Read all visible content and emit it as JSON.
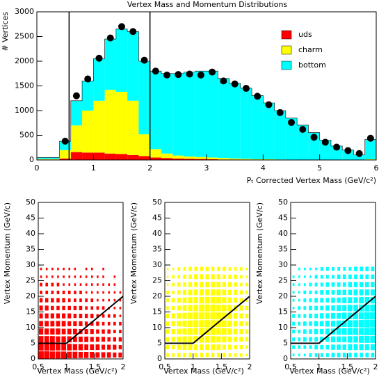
{
  "chart_data": [
    {
      "type": "stacked_histogram",
      "title": "Vertex Mass and Momentum Distributions",
      "xlabel": "Pₜ Corrected Vertex Mass (GeV/c²)",
      "ylabel": "# Vertices",
      "bins": [
        0,
        0.2,
        0.4,
        0.6,
        0.8,
        1,
        1.2,
        1.4,
        1.6,
        1.8,
        2,
        2.2,
        2.4,
        2.6,
        2.8,
        3,
        3.2,
        3.4,
        3.6,
        3.8,
        4,
        4.2,
        4.4,
        4.6,
        4.8,
        5,
        5.2,
        5.4,
        5.6,
        5.8,
        6
      ],
      "series": [
        {
          "name": "uds",
          "color": "#ff0000",
          "values": [
            10,
            10,
            30,
            160,
            150,
            150,
            130,
            120,
            100,
            80,
            50,
            40,
            30,
            25,
            20,
            15,
            10,
            10,
            8,
            5,
            5,
            3,
            3,
            2,
            2,
            1,
            1,
            1,
            1,
            5
          ]
        },
        {
          "name": "charm",
          "color": "#ffff00",
          "values": [
            10,
            10,
            170,
            540,
            850,
            1050,
            1290,
            1260,
            1100,
            440,
            170,
            90,
            60,
            45,
            40,
            35,
            30,
            20,
            15,
            10,
            10,
            7,
            5,
            3,
            3,
            2,
            1,
            1,
            1,
            10
          ]
        },
        {
          "name": "bottom",
          "color": "#00ffff",
          "values": [
            30,
            30,
            180,
            500,
            600,
            850,
            1030,
            1270,
            1400,
            1480,
            1580,
            1620,
            1660,
            1710,
            1740,
            1750,
            1610,
            1520,
            1430,
            1290,
            1140,
            990,
            840,
            700,
            550,
            400,
            280,
            200,
            100,
            400
          ]
        }
      ],
      "points": {
        "x": [
          0.5,
          0.7,
          0.9,
          1.1,
          1.3,
          1.5,
          1.7,
          1.9,
          2.1,
          2.3,
          2.5,
          2.7,
          2.9,
          3.1,
          3.3,
          3.5,
          3.7,
          3.9,
          4.1,
          4.3,
          4.5,
          4.7,
          4.9,
          5.1,
          5.3,
          5.5,
          5.7,
          5.9
        ],
        "values": [
          380,
          1300,
          1640,
          2060,
          2470,
          2700,
          2600,
          2020,
          1800,
          1720,
          1730,
          1740,
          1720,
          1780,
          1600,
          1540,
          1450,
          1290,
          1120,
          960,
          760,
          620,
          460,
          360,
          260,
          190,
          130,
          440
        ]
      },
      "vlines": [
        0.57,
        2
      ],
      "xlim": [
        0,
        6
      ],
      "ylim": [
        0,
        3000
      ],
      "xticks": [
        0,
        1,
        2,
        3,
        4,
        5,
        6
      ],
      "yticks": [
        0,
        500,
        1000,
        1500,
        2000,
        2500,
        3000
      ],
      "legend": "upper right"
    },
    {
      "type": "box2d",
      "color": "#ff0000",
      "xlabel": "Vertex Mass (GeV/c²)",
      "ylabel": "Vertex Momentum (GeV/c)",
      "xlim": [
        0.5,
        2
      ],
      "ylim": [
        0,
        50
      ],
      "xticks": [
        0.5,
        1,
        1.5,
        2
      ],
      "yticks": [
        0,
        5,
        10,
        15,
        20,
        25,
        30,
        35,
        40,
        45,
        50
      ],
      "xbins": [
        0.5,
        0.6,
        0.7,
        0.8,
        0.9,
        1,
        1.1,
        1.2,
        1.3,
        1.4,
        1.5,
        1.6,
        1.7,
        1.8,
        1.9,
        2
      ],
      "ybins": [
        0,
        2.5,
        5,
        7.5,
        10,
        12.5,
        15,
        17.5,
        20,
        22.5,
        25,
        27.5,
        30
      ],
      "z": [
        [
          9,
          9,
          8,
          8,
          8,
          7,
          7,
          6,
          6,
          6,
          5,
          5,
          5,
          4,
          4
        ],
        [
          8,
          8,
          8,
          7,
          7,
          7,
          6,
          6,
          5,
          5,
          5,
          4,
          4,
          4,
          3
        ],
        [
          7,
          7,
          7,
          6,
          6,
          6,
          5,
          5,
          5,
          4,
          4,
          4,
          3,
          3,
          3
        ],
        [
          6,
          6,
          6,
          6,
          5,
          5,
          5,
          4,
          4,
          4,
          3,
          3,
          3,
          2,
          2
        ],
        [
          5,
          5,
          5,
          5,
          5,
          4,
          4,
          4,
          3,
          3,
          3,
          2,
          2,
          2,
          2
        ],
        [
          4,
          4,
          4,
          4,
          4,
          4,
          3,
          3,
          3,
          3,
          2,
          2,
          2,
          2,
          1
        ],
        [
          4,
          4,
          3,
          3,
          3,
          3,
          3,
          3,
          2,
          2,
          2,
          2,
          1,
          1,
          1
        ],
        [
          3,
          3,
          3,
          3,
          3,
          2,
          2,
          2,
          2,
          2,
          1,
          1,
          1,
          1,
          1
        ],
        [
          2,
          2,
          2,
          2,
          2,
          2,
          2,
          2,
          1,
          1,
          1,
          1,
          1,
          1,
          1
        ],
        [
          2,
          2,
          2,
          2,
          1,
          1,
          1,
          1,
          1,
          1,
          1,
          1,
          1,
          1,
          0
        ],
        [
          1,
          1,
          1,
          1,
          1,
          1,
          1,
          1,
          1,
          1,
          1,
          1,
          0,
          1,
          0
        ],
        [
          1,
          1,
          1,
          1,
          1,
          1,
          1,
          0,
          1,
          1,
          0,
          1,
          0,
          0,
          0
        ]
      ],
      "cut": {
        "x": [
          0.5,
          1,
          2
        ],
        "y": [
          5,
          5,
          20
        ]
      }
    },
    {
      "type": "box2d",
      "color": "#ffff00",
      "xlabel": "Vertex Mass (GeV/c²)",
      "ylabel": "Vertex Momentum (GeV/c)",
      "xlim": [
        0.5,
        2
      ],
      "ylim": [
        0,
        50
      ],
      "xticks": [
        0.5,
        1,
        1.5,
        2
      ],
      "yticks": [
        0,
        5,
        10,
        15,
        20,
        25,
        30,
        35,
        40,
        45,
        50
      ],
      "xbins": [
        0.5,
        0.6,
        0.7,
        0.8,
        0.9,
        1,
        1.1,
        1.2,
        1.3,
        1.4,
        1.5,
        1.6,
        1.7,
        1.8,
        1.9,
        2
      ],
      "ybins": [
        0,
        2.5,
        5,
        7.5,
        10,
        12.5,
        15,
        17.5,
        20,
        22.5,
        25,
        27.5,
        30
      ],
      "z": [
        [
          2,
          2,
          3,
          3,
          3,
          3,
          3,
          3,
          3,
          3,
          3,
          2,
          2,
          2,
          1
        ],
        [
          3,
          3,
          4,
          5,
          5,
          5,
          5,
          5,
          5,
          5,
          4,
          4,
          3,
          3,
          2
        ],
        [
          3,
          4,
          5,
          6,
          6,
          7,
          7,
          7,
          7,
          6,
          6,
          5,
          4,
          4,
          3
        ],
        [
          3,
          4,
          5,
          6,
          7,
          7,
          8,
          8,
          8,
          7,
          7,
          6,
          5,
          4,
          3
        ],
        [
          3,
          4,
          5,
          6,
          7,
          8,
          8,
          9,
          8,
          8,
          7,
          6,
          5,
          4,
          3
        ],
        [
          3,
          4,
          5,
          6,
          7,
          8,
          8,
          8,
          8,
          8,
          7,
          6,
          5,
          4,
          3
        ],
        [
          2,
          3,
          4,
          5,
          6,
          7,
          8,
          8,
          8,
          7,
          7,
          6,
          5,
          4,
          3
        ],
        [
          2,
          3,
          4,
          5,
          6,
          6,
          7,
          7,
          7,
          7,
          6,
          5,
          4,
          3,
          2
        ],
        [
          2,
          2,
          3,
          4,
          5,
          5,
          6,
          6,
          6,
          6,
          5,
          4,
          4,
          3,
          2
        ],
        [
          1,
          2,
          3,
          3,
          4,
          4,
          5,
          5,
          5,
          5,
          4,
          4,
          3,
          2,
          2
        ],
        [
          1,
          2,
          2,
          3,
          3,
          4,
          4,
          4,
          4,
          4,
          3,
          3,
          3,
          2,
          1
        ],
        [
          1,
          1,
          2,
          2,
          3,
          3,
          3,
          3,
          3,
          3,
          3,
          2,
          2,
          2,
          1
        ]
      ],
      "cut": {
        "x": [
          0.5,
          1,
          2
        ],
        "y": [
          5,
          5,
          20
        ]
      }
    },
    {
      "type": "box2d",
      "color": "#00ffff",
      "xlabel": "Vertex Mass (GeV/c²)",
      "ylabel": "Vertex Momentum (GeV/c)",
      "xlim": [
        0.5,
        2
      ],
      "ylim": [
        0,
        50
      ],
      "xticks": [
        0.5,
        1,
        1.5,
        2
      ],
      "yticks": [
        0,
        5,
        10,
        15,
        20,
        25,
        30,
        35,
        40,
        45,
        50
      ],
      "xbins": [
        0.5,
        0.6,
        0.7,
        0.8,
        0.9,
        1,
        1.1,
        1.2,
        1.3,
        1.4,
        1.5,
        1.6,
        1.7,
        1.8,
        1.9,
        2
      ],
      "ybins": [
        0,
        2.5,
        5,
        7.5,
        10,
        12.5,
        15,
        17.5,
        20,
        22.5,
        25,
        27.5,
        30
      ],
      "z": [
        [
          1,
          1,
          1,
          2,
          2,
          2,
          2,
          3,
          3,
          3,
          3,
          3,
          3,
          3,
          3
        ],
        [
          2,
          2,
          2,
          2,
          3,
          3,
          3,
          4,
          4,
          4,
          5,
          5,
          5,
          5,
          5
        ],
        [
          2,
          2,
          3,
          3,
          3,
          4,
          4,
          5,
          5,
          5,
          6,
          6,
          7,
          7,
          7
        ],
        [
          2,
          2,
          3,
          3,
          4,
          4,
          5,
          5,
          6,
          6,
          7,
          7,
          7,
          8,
          8
        ],
        [
          2,
          2,
          3,
          3,
          4,
          4,
          5,
          5,
          6,
          6,
          7,
          7,
          8,
          8,
          8
        ],
        [
          2,
          2,
          2,
          3,
          3,
          4,
          4,
          5,
          5,
          6,
          6,
          7,
          7,
          8,
          8
        ],
        [
          1,
          2,
          2,
          3,
          3,
          3,
          4,
          4,
          5,
          5,
          6,
          6,
          7,
          7,
          7
        ],
        [
          1,
          1,
          2,
          2,
          3,
          3,
          3,
          4,
          4,
          5,
          5,
          5,
          6,
          6,
          6
        ],
        [
          1,
          1,
          2,
          2,
          2,
          3,
          3,
          3,
          4,
          4,
          4,
          5,
          5,
          5,
          5
        ],
        [
          1,
          1,
          1,
          2,
          2,
          2,
          3,
          3,
          3,
          3,
          4,
          4,
          4,
          4,
          4
        ],
        [
          1,
          1,
          1,
          1,
          2,
          2,
          2,
          2,
          3,
          3,
          3,
          3,
          3,
          3,
          3
        ],
        [
          0,
          1,
          1,
          1,
          1,
          2,
          2,
          2,
          2,
          2,
          2,
          3,
          3,
          3,
          3
        ]
      ],
      "cut": {
        "x": [
          0.5,
          1,
          2
        ],
        "y": [
          5,
          5,
          20
        ]
      }
    }
  ]
}
